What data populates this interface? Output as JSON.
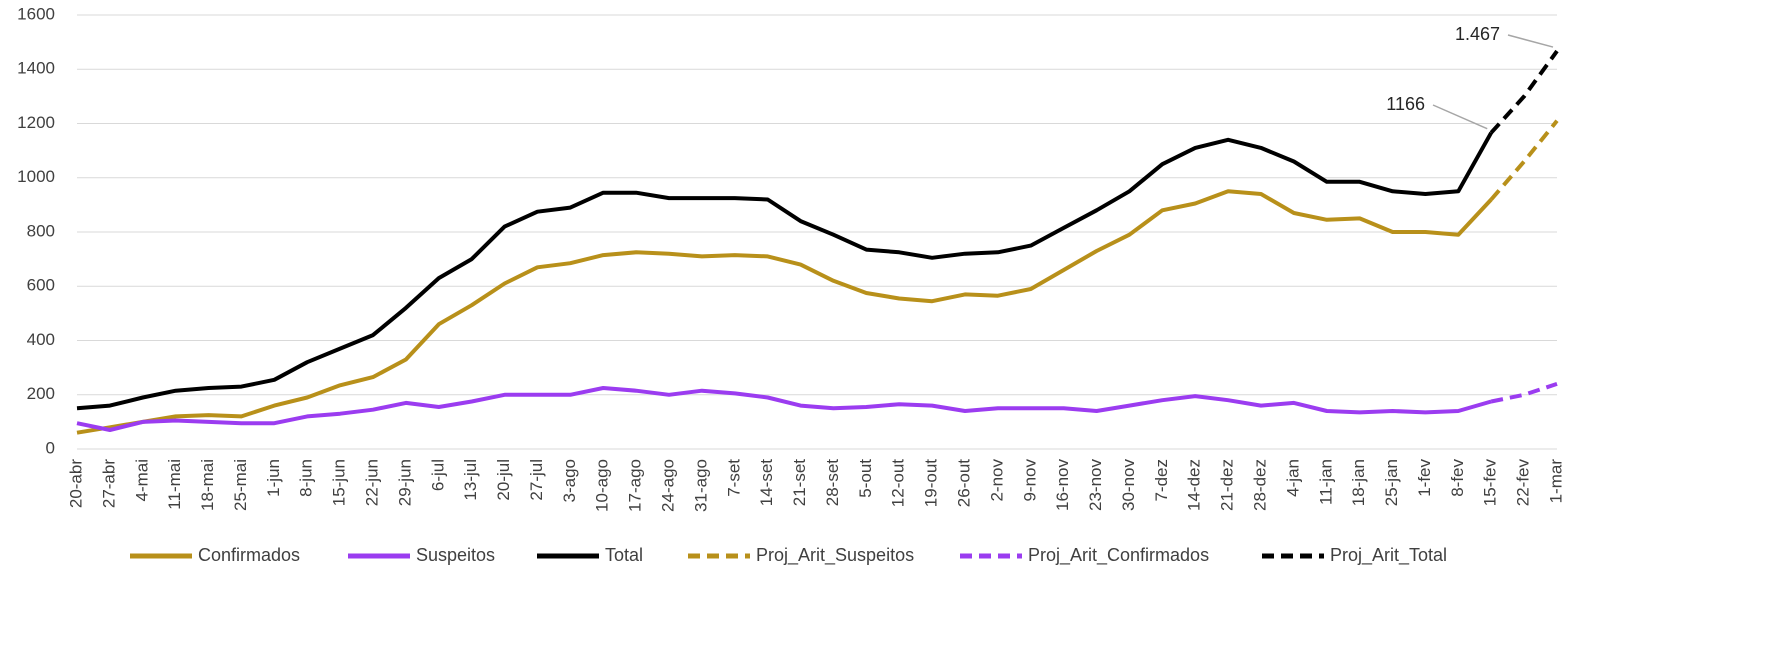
{
  "chart_data": {
    "type": "line",
    "categories": [
      "20-abr",
      "27-abr",
      "4-mai",
      "11-mai",
      "18-mai",
      "25-mai",
      "1-jun",
      "8-jun",
      "15-jun",
      "22-jun",
      "29-jun",
      "6-jul",
      "13-jul",
      "20-jul",
      "27-jul",
      "3-ago",
      "10-ago",
      "17-ago",
      "24-ago",
      "31-ago",
      "7-set",
      "14-set",
      "21-set",
      "28-set",
      "5-out",
      "12-out",
      "19-out",
      "26-out",
      "2-nov",
      "9-nov",
      "16-nov",
      "23-nov",
      "30-nov",
      "7-dez",
      "14-dez",
      "21-dez",
      "28-dez",
      "4-jan",
      "11-jan",
      "18-jan",
      "25-jan",
      "1-fev",
      "8-fev",
      "15-fev",
      "22-fev",
      "1-mar"
    ],
    "series": [
      {
        "name": "Confirmados",
        "color": "#b8901a",
        "style": "solid",
        "values": [
          60,
          80,
          100,
          120,
          125,
          120,
          160,
          190,
          235,
          265,
          330,
          460,
          530,
          610,
          670,
          685,
          715,
          725,
          720,
          710,
          715,
          710,
          680,
          620,
          575,
          555,
          545,
          570,
          565,
          590,
          660,
          730,
          790,
          880,
          905,
          950,
          940,
          870,
          845,
          850,
          800,
          800,
          790,
          920,
          null,
          null
        ]
      },
      {
        "name": "Suspeitos",
        "color": "#9b3cf0",
        "style": "solid",
        "values": [
          95,
          70,
          100,
          105,
          100,
          95,
          95,
          120,
          130,
          145,
          170,
          155,
          175,
          200,
          200,
          200,
          225,
          215,
          200,
          215,
          205,
          190,
          160,
          150,
          155,
          165,
          160,
          140,
          150,
          150,
          150,
          140,
          160,
          180,
          195,
          180,
          160,
          170,
          140,
          135,
          140,
          135,
          140,
          175,
          null,
          null
        ]
      },
      {
        "name": "Total",
        "color": "#000000",
        "style": "solid",
        "values": [
          150,
          160,
          190,
          215,
          225,
          230,
          255,
          320,
          370,
          420,
          520,
          630,
          700,
          820,
          875,
          890,
          945,
          945,
          925,
          925,
          925,
          920,
          840,
          790,
          735,
          725,
          705,
          720,
          725,
          750,
          815,
          880,
          950,
          1050,
          1110,
          1140,
          1110,
          1060,
          985,
          985,
          950,
          940,
          950,
          1166,
          null,
          null
        ]
      },
      {
        "name": "Proj_Arit_Suspeitos",
        "color": "#b8901a",
        "style": "dashed",
        "values": [
          null,
          null,
          null,
          null,
          null,
          null,
          null,
          null,
          null,
          null,
          null,
          null,
          null,
          null,
          null,
          null,
          null,
          null,
          null,
          null,
          null,
          null,
          null,
          null,
          null,
          null,
          null,
          null,
          null,
          null,
          null,
          null,
          null,
          null,
          null,
          null,
          null,
          null,
          null,
          null,
          null,
          null,
          null,
          920,
          1060,
          1210
        ]
      },
      {
        "name": "Proj_Arit_Confirmados",
        "color": "#9b3cf0",
        "style": "dashed",
        "values": [
          null,
          null,
          null,
          null,
          null,
          null,
          null,
          null,
          null,
          null,
          null,
          null,
          null,
          null,
          null,
          null,
          null,
          null,
          null,
          null,
          null,
          null,
          null,
          null,
          null,
          null,
          null,
          null,
          null,
          null,
          null,
          null,
          null,
          null,
          null,
          null,
          null,
          null,
          null,
          null,
          null,
          null,
          null,
          175,
          200,
          240
        ]
      },
      {
        "name": "Proj_Arit_Total",
        "color": "#000000",
        "style": "dashed",
        "values": [
          null,
          null,
          null,
          null,
          null,
          null,
          null,
          null,
          null,
          null,
          null,
          null,
          null,
          null,
          null,
          null,
          null,
          null,
          null,
          null,
          null,
          null,
          null,
          null,
          null,
          null,
          null,
          null,
          null,
          null,
          null,
          null,
          null,
          null,
          null,
          null,
          null,
          null,
          null,
          null,
          null,
          null,
          null,
          1166,
          1300,
          1467
        ]
      }
    ],
    "annotations": [
      {
        "label": "1.467",
        "value": 1467
      },
      {
        "label": "1166",
        "value": 1166
      }
    ],
    "ylim": [
      0,
      1600
    ],
    "yticks": [
      0,
      200,
      400,
      600,
      800,
      1000,
      1200,
      1400,
      1600
    ],
    "grid": true,
    "legend": "bottom"
  }
}
